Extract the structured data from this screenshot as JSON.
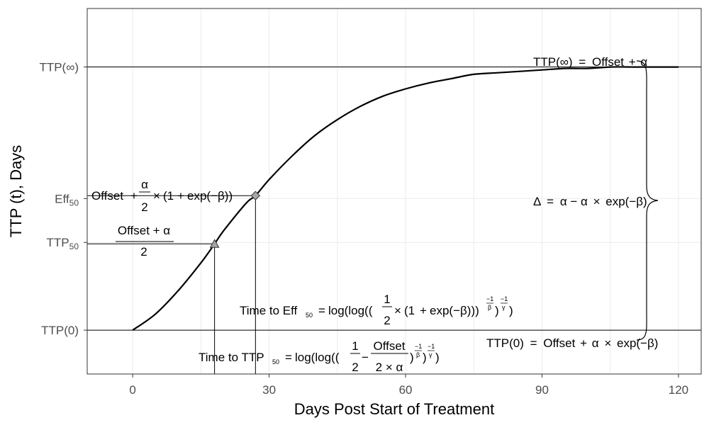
{
  "chart_data": {
    "type": "line",
    "xlabel": "Days Post Start of Treatment",
    "ylabel": "TTP (t), Days",
    "xlim": [
      -10,
      125
    ],
    "ylim": [
      -0.3,
      2.2
    ],
    "x_ticks": [
      0,
      30,
      60,
      90,
      120
    ],
    "y_ticks": [
      {
        "value": 0,
        "label": "TTP(0)"
      },
      {
        "value": 0.6,
        "base": "TTP",
        "sub": "50"
      },
      {
        "value": 0.9,
        "base": "Eff",
        "sub": "50"
      },
      {
        "value": 1.8,
        "label": "TTP(∞)"
      }
    ],
    "grid": true,
    "series": [
      {
        "x": [
          0,
          5,
          10,
          15,
          18,
          20,
          25,
          27,
          30,
          35,
          40,
          45,
          50,
          55,
          60,
          65,
          70,
          75,
          80,
          85,
          90,
          95,
          100,
          105,
          110,
          115,
          120
        ],
        "y": [
          0,
          0.11,
          0.27,
          0.46,
          0.59,
          0.68,
          0.87,
          0.92,
          1.03,
          1.19,
          1.33,
          1.44,
          1.53,
          1.6,
          1.65,
          1.69,
          1.72,
          1.75,
          1.76,
          1.77,
          1.78,
          1.79,
          1.79,
          1.8,
          1.8,
          1.8,
          1.8
        ]
      }
    ],
    "markers": [
      {
        "shape": "triangle",
        "x": 18,
        "y": 0.59
      },
      {
        "shape": "diamond",
        "x": 27,
        "y": 0.92
      }
    ],
    "annotations": {
      "ttp_inf": {
        "a": "TTP(∞)",
        "b": "=",
        "c": "Offset",
        "d": "+",
        "e": "α"
      },
      "eff50": {
        "a": "Offset",
        "b": "+",
        "num": "α",
        "den": "2",
        "c": "×",
        "d": "(1",
        "e": "+",
        "f": "exp(−β))"
      },
      "ttp50_frac": {
        "num": "Offset + α",
        "den": "2"
      },
      "delta": {
        "a": "Δ",
        "b": "=",
        "c": "α − α",
        "d": "×",
        "e": "exp(−β)"
      },
      "time_eff": {
        "a": "Time to Eff",
        "sub": "50",
        "b": "=",
        "c": "log(log((",
        "num": "1",
        "den": "2",
        "d": "×",
        "e": "(1",
        "f": "+",
        "g": "exp(−β)))",
        "h": ")",
        "sup1": "−1",
        "sup1den": "β",
        "sup2": "−1",
        "sup2den": "γ",
        "i": ")"
      },
      "ttp0": {
        "a": "TTP(0)",
        "b": "=",
        "c": "Offset",
        "d": "+",
        "e": "α",
        "f": "×",
        "g": "exp(−β)"
      },
      "time_ttp": {
        "a": "Time to TTP",
        "sub": "50",
        "b": "=",
        "c": "log(log((",
        "num1": "1",
        "den1": "2",
        "d": "−",
        "num2": "Offset",
        "den2": "2 × α",
        "e": ")",
        "sup1": "−1",
        "sup1den": "β",
        "f": ")",
        "sup2": "−1",
        "sup2den": "γ",
        "g": ")"
      }
    }
  }
}
